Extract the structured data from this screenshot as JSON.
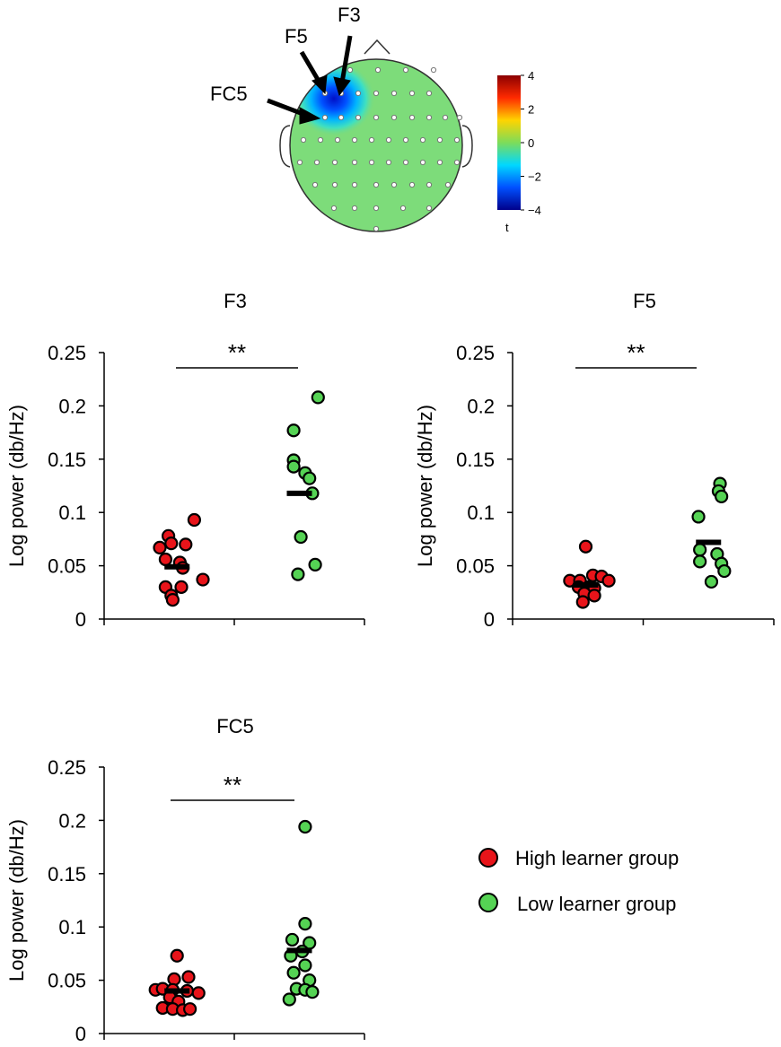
{
  "topomap": {
    "electrode_labels": [
      "F3",
      "F5",
      "FC5"
    ],
    "colorbar": {
      "ticks": [
        "4",
        "2",
        "0",
        "−2",
        "−4"
      ],
      "label": "t",
      "colors": [
        "#8b0000",
        "#ff2a00",
        "#ffd400",
        "#7ddc5a",
        "#00d8ff",
        "#0050ff",
        "#00008b"
      ]
    },
    "background_color": "#7ddc7a"
  },
  "legend": {
    "items": [
      {
        "label": "High learner group",
        "color": "#e8141a"
      },
      {
        "label": "Low learner group",
        "color": "#55d354"
      }
    ]
  },
  "chart_data": [
    {
      "type": "scatter",
      "title": "F3",
      "ylabel": "Log power (db/Hz)",
      "ylim": [
        0,
        0.25
      ],
      "yticks": [
        "0",
        "0.05",
        "0.1",
        "0.15",
        "0.2",
        "0.25"
      ],
      "significance": "**",
      "series": [
        {
          "name": "High learner group",
          "color": "#e8141a",
          "points": [
            [
              -0.6,
              0.067
            ],
            [
              -0.3,
              0.078
            ],
            [
              -0.2,
              0.071
            ],
            [
              0.3,
              0.07
            ],
            [
              0.6,
              0.093
            ],
            [
              -0.4,
              0.056
            ],
            [
              0.1,
              0.053
            ],
            [
              0.2,
              0.048
            ],
            [
              -0.4,
              0.03
            ],
            [
              0.15,
              0.03
            ],
            [
              0.9,
              0.037
            ],
            [
              -0.2,
              0.022
            ],
            [
              -0.15,
              0.018
            ]
          ],
          "mean": 0.049
        },
        {
          "name": "Low learner group",
          "color": "#55d354",
          "points": [
            [
              0.65,
              0.208
            ],
            [
              -0.2,
              0.177
            ],
            [
              -0.2,
              0.149
            ],
            [
              -0.2,
              0.143
            ],
            [
              0.2,
              0.137
            ],
            [
              0.35,
              0.132
            ],
            [
              0.45,
              0.118
            ],
            [
              0.05,
              0.077
            ],
            [
              -0.05,
              0.042
            ],
            [
              0.55,
              0.051
            ]
          ],
          "mean": 0.118
        }
      ]
    },
    {
      "type": "scatter",
      "title": "F5",
      "ylabel": "Log power (db/Hz)",
      "ylim": [
        0,
        0.25
      ],
      "yticks": [
        "0",
        "0.05",
        "0.1",
        "0.15",
        "0.2",
        "0.25"
      ],
      "significance": "**",
      "series": [
        {
          "name": "High learner group",
          "color": "#e8141a",
          "points": [
            [
              0.0,
              0.068
            ],
            [
              -0.55,
              0.036
            ],
            [
              -0.2,
              0.036
            ],
            [
              0.25,
              0.041
            ],
            [
              0.55,
              0.04
            ],
            [
              0.8,
              0.036
            ],
            [
              -0.25,
              0.03
            ],
            [
              0.1,
              0.03
            ],
            [
              0.3,
              0.029
            ],
            [
              -0.05,
              0.024
            ],
            [
              0.3,
              0.022
            ],
            [
              -0.1,
              0.016
            ]
          ],
          "mean": 0.032
        },
        {
          "name": "Low learner group",
          "color": "#55d354",
          "points": [
            [
              0.4,
              0.127
            ],
            [
              0.35,
              0.12
            ],
            [
              0.45,
              0.115
            ],
            [
              -0.35,
              0.096
            ],
            [
              -0.3,
              0.065
            ],
            [
              0.3,
              0.061
            ],
            [
              -0.3,
              0.054
            ],
            [
              0.45,
              0.052
            ],
            [
              0.55,
              0.045
            ],
            [
              0.1,
              0.035
            ]
          ],
          "mean": 0.072
        }
      ]
    },
    {
      "type": "scatter",
      "title": "FC5",
      "ylabel": "Log power (db/Hz)",
      "ylim": [
        0,
        0.25
      ],
      "yticks": [
        "0",
        "0.05",
        "0.1",
        "0.15",
        "0.2",
        "0.25"
      ],
      "significance": "**",
      "series": [
        {
          "name": "High learner group",
          "color": "#e8141a",
          "points": [
            [
              0.0,
              0.073
            ],
            [
              0.4,
              0.053
            ],
            [
              -0.1,
              0.051
            ],
            [
              -0.75,
              0.041
            ],
            [
              -0.5,
              0.042
            ],
            [
              -0.15,
              0.041
            ],
            [
              0.35,
              0.04
            ],
            [
              0.75,
              0.038
            ],
            [
              -0.25,
              0.034
            ],
            [
              0.05,
              0.03
            ],
            [
              -0.5,
              0.024
            ],
            [
              -0.15,
              0.023
            ],
            [
              0.2,
              0.022
            ],
            [
              0.45,
              0.023
            ]
          ],
          "mean": 0.04
        },
        {
          "name": "Low learner group",
          "color": "#55d354",
          "points": [
            [
              0.2,
              0.194
            ],
            [
              0.2,
              0.103
            ],
            [
              -0.25,
              0.088
            ],
            [
              0.35,
              0.085
            ],
            [
              0.1,
              0.077
            ],
            [
              -0.3,
              0.073
            ],
            [
              0.2,
              0.064
            ],
            [
              -0.2,
              0.057
            ],
            [
              0.35,
              0.05
            ],
            [
              -0.1,
              0.042
            ],
            [
              0.2,
              0.041
            ],
            [
              0.45,
              0.039
            ],
            [
              -0.35,
              0.032
            ]
          ],
          "mean": 0.078
        }
      ]
    }
  ]
}
